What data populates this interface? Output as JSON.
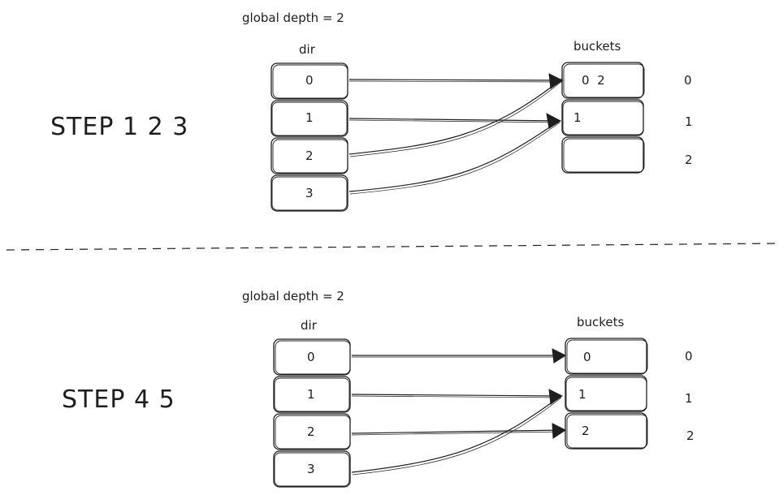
{
  "panels": [
    {
      "step_label": "STEP 1 2 3",
      "global_depth_label": "global depth = 2",
      "dir_label": "dir",
      "buckets_label": "buckets",
      "dir_cells": [
        "0",
        "1",
        "2",
        "3"
      ],
      "bucket_cells": [
        "0  2",
        "1",
        ""
      ],
      "bucket_indices": [
        "0",
        "1",
        "2"
      ],
      "pointers": [
        {
          "from": "0",
          "to": "0"
        },
        {
          "from": "1",
          "to": "1"
        },
        {
          "from": "2",
          "to": "0"
        },
        {
          "from": "3",
          "to": "1"
        }
      ]
    },
    {
      "step_label": "STEP 4 5",
      "global_depth_label": "global depth = 2",
      "dir_label": "dir",
      "buckets_label": "buckets",
      "dir_cells": [
        "0",
        "1",
        "2",
        "3"
      ],
      "bucket_cells": [
        "0",
        "1",
        "2"
      ],
      "bucket_indices": [
        "0",
        "1",
        "2"
      ],
      "pointers": [
        {
          "from": "0",
          "to": "0"
        },
        {
          "from": "1",
          "to": "1"
        },
        {
          "from": "2",
          "to": "2"
        },
        {
          "from": "3",
          "to": "1"
        }
      ]
    }
  ]
}
